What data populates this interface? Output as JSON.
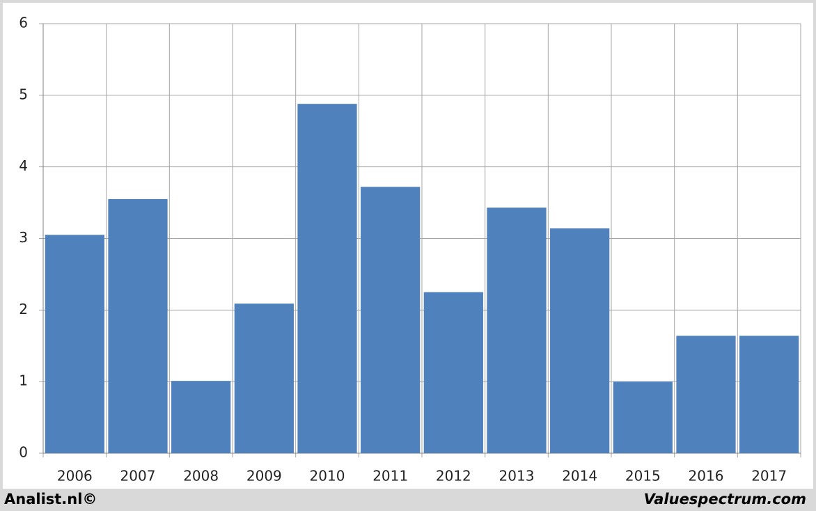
{
  "chart_data": {
    "type": "bar",
    "categories": [
      "2006",
      "2007",
      "2008",
      "2009",
      "2010",
      "2011",
      "2012",
      "2013",
      "2014",
      "2015",
      "2016",
      "2017"
    ],
    "values": [
      3.05,
      3.55,
      1.01,
      2.09,
      4.88,
      3.72,
      2.25,
      3.43,
      3.14,
      1.0,
      1.64,
      1.64
    ],
    "color": "#4f81bd",
    "ylim": [
      0,
      6
    ],
    "yticks": [
      0,
      1,
      2,
      3,
      4,
      5,
      6
    ],
    "grid": true
  },
  "footer": {
    "left": "Analist.nl©",
    "right": "Valuespectrum.com"
  }
}
